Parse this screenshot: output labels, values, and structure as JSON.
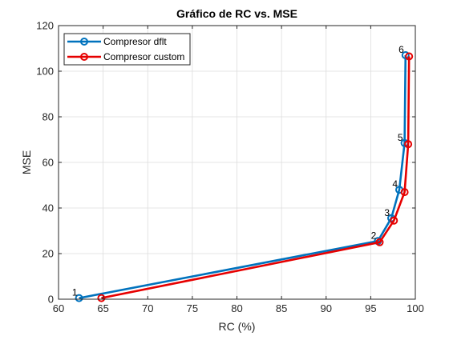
{
  "chart_data": {
    "type": "line",
    "title": "Gráfico de RC vs. MSE",
    "xlabel": "RC (%)",
    "ylabel": "MSE",
    "xlim": [
      60,
      100
    ],
    "ylim": [
      0,
      120
    ],
    "xticks": [
      "60",
      "65",
      "70",
      "75",
      "80",
      "85",
      "90",
      "95",
      "100"
    ],
    "yticks": [
      "0",
      "20",
      "40",
      "60",
      "80",
      "100",
      "120"
    ],
    "grid": true,
    "legend_position": "top-left",
    "series": [
      {
        "name": "Compresor dflt",
        "color": "#0072BD",
        "marker": "circle",
        "x": [
          62.3,
          95.8,
          97.3,
          98.2,
          98.8,
          98.9
        ],
        "y": [
          0.5,
          25.5,
          35.5,
          48.0,
          68.5,
          107.0
        ]
      },
      {
        "name": "Compresor custom",
        "color": "#E60000",
        "marker": "circle",
        "x": [
          64.8,
          96.0,
          97.6,
          98.8,
          99.2,
          99.3
        ],
        "y": [
          0.5,
          25.0,
          34.5,
          47.0,
          68.0,
          106.5
        ]
      }
    ],
    "point_labels": [
      {
        "text": "1",
        "x": 62.3,
        "y": 0.5
      },
      {
        "text": "2",
        "x": 95.8,
        "y": 25.5
      },
      {
        "text": "3",
        "x": 97.3,
        "y": 35.5
      },
      {
        "text": "4",
        "x": 98.2,
        "y": 48.0
      },
      {
        "text": "5",
        "x": 98.8,
        "y": 68.5
      },
      {
        "text": "6",
        "x": 98.9,
        "y": 107.0
      }
    ]
  }
}
